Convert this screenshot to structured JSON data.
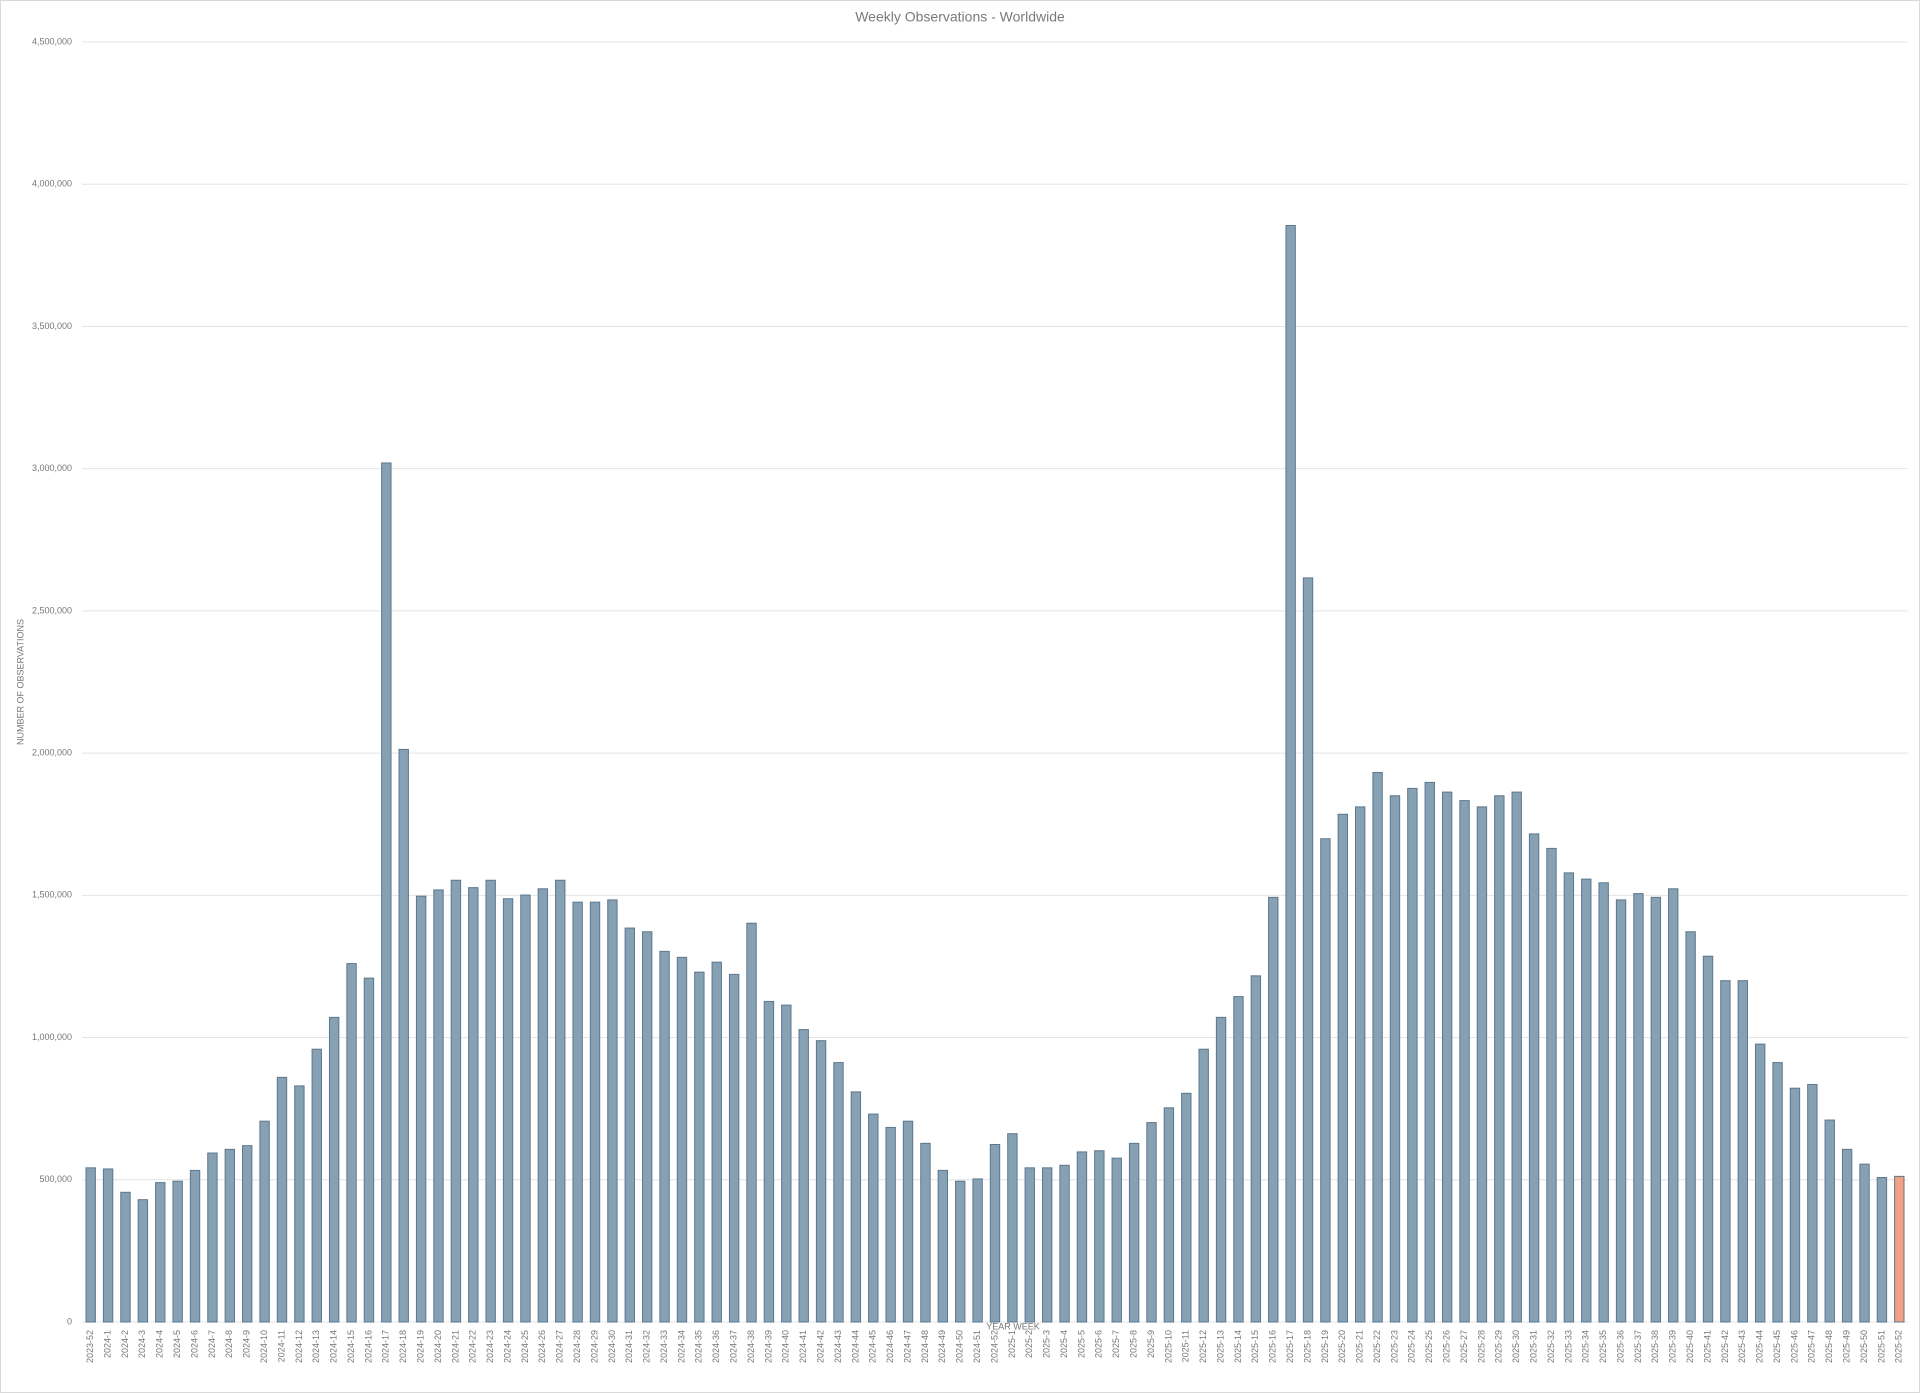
{
  "chart_data": {
    "type": "bar",
    "title": "Weekly Observations - Worldwide",
    "x_label": "YEAR WEEK",
    "y_label": "NUMBER OF OBSERVATIONS",
    "categories": [
      "2023-52",
      "2024-1",
      "2024-2",
      "2024-3",
      "2024-4",
      "2024-5",
      "2024-6",
      "2024-7",
      "2024-8",
      "2024-9",
      "2024-10",
      "2024-11",
      "2024-12",
      "2024-13",
      "2024-14",
      "2024-15",
      "2024-16",
      "2024-17",
      "2024-18",
      "2024-19",
      "2024-20",
      "2024-21",
      "2024-22",
      "2024-23",
      "2024-24",
      "2024-25",
      "2024-26",
      "2024-27",
      "2024-28",
      "2024-29",
      "2024-30",
      "2024-31",
      "2024-32",
      "2024-33",
      "2024-34",
      "2024-35",
      "2024-36",
      "2024-37",
      "2024-38",
      "2024-39",
      "2024-40",
      "2024-41",
      "2024-42",
      "2024-43",
      "2024-44",
      "2024-45",
      "2024-46",
      "2024-47",
      "2024-48",
      "2024-49",
      "2024-50",
      "2024-51",
      "2024-52",
      "2025-1",
      "2025-2",
      "2025-3",
      "2025-4",
      "2025-5",
      "2025-6",
      "2025-7",
      "2025-8",
      "2025-9",
      "2025-10",
      "2025-11",
      "2025-12",
      "2025-13",
      "2025-14",
      "2025-15",
      "2025-16",
      "2025-17",
      "2025-18",
      "2025-19",
      "2025-20",
      "2025-21",
      "2025-22",
      "2025-23",
      "2025-24",
      "2025-25",
      "2025-26",
      "2025-27",
      "2025-28",
      "2025-29",
      "2025-30",
      "2025-31",
      "2025-32",
      "2025-33",
      "2025-34",
      "2025-35",
      "2025-36",
      "2025-37",
      "2025-38",
      "2025-39",
      "2025-40",
      "2025-41",
      "2025-42",
      "2025-43",
      "2025-44",
      "2025-45",
      "2025-46",
      "2025-47",
      "2025-48",
      "2025-49",
      "2025-50",
      "2025-51",
      "2025-52"
    ],
    "values": [
      542000,
      538000,
      456000,
      430000,
      490000,
      495000,
      533000,
      594000,
      607000,
      620000,
      706000,
      860000,
      830000,
      959000,
      1071000,
      1260000,
      1209000,
      3020000,
      2013000,
      1497000,
      1519000,
      1553000,
      1527000,
      1553000,
      1488000,
      1501000,
      1523000,
      1553000,
      1476000,
      1476000,
      1484000,
      1385000,
      1372000,
      1303000,
      1282000,
      1230000,
      1265000,
      1222000,
      1402000,
      1127000,
      1114000,
      1028000,
      989000,
      912000,
      809000,
      731000,
      684000,
      706000,
      628000,
      533000,
      495000,
      503000,
      624000,
      662000,
      542000,
      542000,
      551000,
      598000,
      602000,
      576000,
      628000,
      701000,
      753000,
      804000,
      959000,
      1071000,
      1144000,
      1217000,
      1493000,
      3855000,
      2616000,
      1699000,
      1785000,
      1811000,
      1932000,
      1850000,
      1876000,
      1897000,
      1863000,
      1833000,
      1811000,
      1850000,
      1863000,
      1716000,
      1665000,
      1579000,
      1557000,
      1544000,
      1484000,
      1506000,
      1493000,
      1523000,
      1372000,
      1286000,
      1200000,
      1200000,
      977000,
      912000,
      822000,
      835000,
      710000,
      607000,
      555000,
      508000,
      512000
    ],
    "colors": [
      "#86a0b4",
      "#86a0b4",
      "#86a0b4",
      "#86a0b4",
      "#86a0b4",
      "#86a0b4",
      "#86a0b4",
      "#86a0b4",
      "#86a0b4",
      "#86a0b4",
      "#86a0b4",
      "#86a0b4",
      "#86a0b4",
      "#86a0b4",
      "#86a0b4",
      "#86a0b4",
      "#86a0b4",
      "#86a0b4",
      "#86a0b4",
      "#86a0b4",
      "#86a0b4",
      "#86a0b4",
      "#86a0b4",
      "#86a0b4",
      "#86a0b4",
      "#86a0b4",
      "#86a0b4",
      "#86a0b4",
      "#86a0b4",
      "#86a0b4",
      "#86a0b4",
      "#86a0b4",
      "#86a0b4",
      "#86a0b4",
      "#86a0b4",
      "#86a0b4",
      "#86a0b4",
      "#86a0b4",
      "#86a0b4",
      "#86a0b4",
      "#86a0b4",
      "#86a0b4",
      "#86a0b4",
      "#86a0b4",
      "#86a0b4",
      "#86a0b4",
      "#86a0b4",
      "#86a0b4",
      "#86a0b4",
      "#86a0b4",
      "#86a0b4",
      "#86a0b4",
      "#86a0b4",
      "#86a0b4",
      "#86a0b4",
      "#86a0b4",
      "#86a0b4",
      "#86a0b4",
      "#86a0b4",
      "#86a0b4",
      "#86a0b4",
      "#86a0b4",
      "#86a0b4",
      "#86a0b4",
      "#86a0b4",
      "#86a0b4",
      "#86a0b4",
      "#86a0b4",
      "#86a0b4",
      "#86a0b4",
      "#86a0b4",
      "#86a0b4",
      "#86a0b4",
      "#86a0b4",
      "#86a0b4",
      "#86a0b4",
      "#86a0b4",
      "#86a0b4",
      "#86a0b4",
      "#86a0b4",
      "#86a0b4",
      "#86a0b4",
      "#86a0b4",
      "#86a0b4",
      "#86a0b4",
      "#86a0b4",
      "#86a0b4",
      "#86a0b4",
      "#86a0b4",
      "#86a0b4",
      "#86a0b4",
      "#86a0b4",
      "#86a0b4",
      "#86a0b4",
      "#86a0b4",
      "#86a0b4",
      "#86a0b4",
      "#86a0b4",
      "#86a0b4",
      "#86a0b4",
      "#86a0b4",
      "#86a0b4",
      "#86a0b4",
      "#86a0b4",
      "#f2a185"
    ],
    "ylim": [
      0,
      4500000
    ],
    "yticks": [
      0,
      {
        "value": 500000,
        "label": "500,000"
      },
      {
        "value": 1000000,
        "label": "1,000,000"
      },
      {
        "value": 1500000,
        "label": "1,500,000"
      },
      {
        "value": 2000000,
        "label": "2,000,000"
      },
      {
        "value": 2500000,
        "label": "2,500,000"
      },
      {
        "value": 3000000,
        "label": "3,000,000"
      },
      {
        "value": 3500000,
        "label": "3,500,000"
      },
      {
        "value": 4000000,
        "label": "4,000,000"
      },
      {
        "value": 4500000,
        "label": "4,500,000"
      }
    ],
    "grid": true
  }
}
